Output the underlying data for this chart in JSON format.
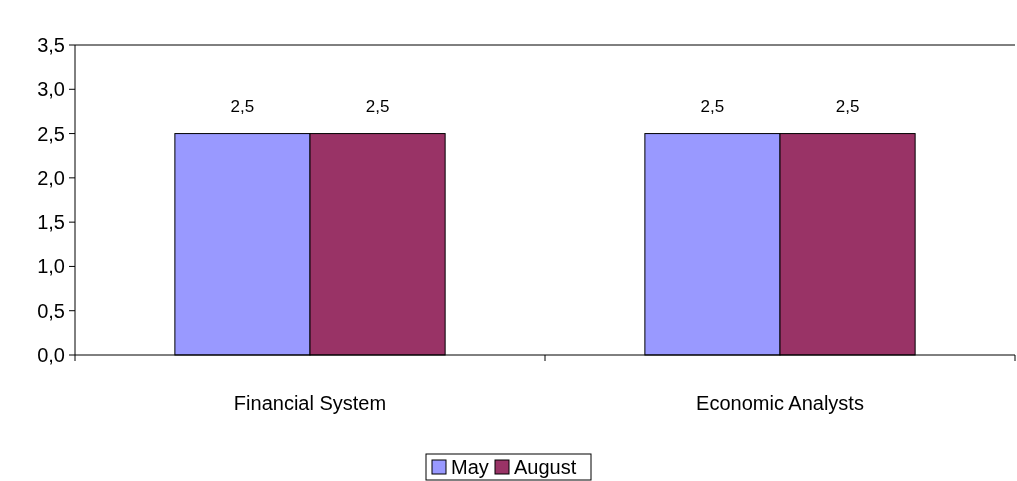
{
  "chart_data": {
    "type": "bar",
    "categories": [
      "Financial System",
      "Economic Analysts"
    ],
    "series": [
      {
        "name": "May",
        "color": "#9999ff",
        "values": [
          2.5,
          2.5
        ],
        "value_labels": [
          "2,5",
          "2,5"
        ]
      },
      {
        "name": "August",
        "color": "#993366",
        "values": [
          2.5,
          2.5
        ],
        "value_labels": [
          "2,5",
          "2,5"
        ]
      }
    ],
    "ylim": [
      0,
      3.5
    ],
    "yticks": [
      {
        "value": 0,
        "label": "0,0"
      },
      {
        "value": 0.5,
        "label": "0,5"
      },
      {
        "value": 1,
        "label": "1,0"
      },
      {
        "value": 1.5,
        "label": "1,5"
      },
      {
        "value": 2,
        "label": "2,0"
      },
      {
        "value": 2.5,
        "label": "2,5"
      },
      {
        "value": 3,
        "label": "3,0"
      },
      {
        "value": 3.5,
        "label": "3,5"
      }
    ],
    "legend": "bottom"
  }
}
